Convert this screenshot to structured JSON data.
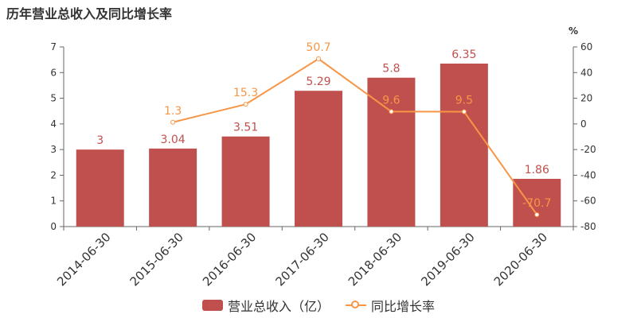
{
  "title": "历年营业总收入及同比增长率",
  "chart_data": {
    "type": "bar",
    "categories": [
      "2014-06-30",
      "2015-06-30",
      "2016-06-30",
      "2017-06-30",
      "2018-06-30",
      "2019-06-30",
      "2020-06-30"
    ],
    "series": [
      {
        "name": "营业总收入（亿）",
        "type": "bar",
        "axis": "left",
        "color": "#c0504d",
        "values": [
          3,
          3.04,
          3.51,
          5.29,
          5.8,
          6.35,
          1.86
        ],
        "labels": [
          "3",
          "3.04",
          "3.51",
          "5.29",
          "5.8",
          "6.35",
          "1.86"
        ]
      },
      {
        "name": "同比增长率",
        "type": "line",
        "axis": "right",
        "color": "#f79646",
        "values": [
          null,
          1.3,
          15.3,
          50.7,
          9.6,
          9.5,
          -70.7
        ],
        "labels": [
          "",
          "1.3",
          "15.3",
          "50.7",
          "9.6",
          "9.5",
          "-70.7"
        ]
      }
    ],
    "y_left": {
      "min": 0,
      "max": 7,
      "ticks": [
        "0",
        "1",
        "2",
        "3",
        "4",
        "5",
        "6",
        "7"
      ]
    },
    "y_right": {
      "min": -80,
      "max": 60,
      "unit": "%",
      "ticks": [
        "-80",
        "-60",
        "-40",
        "-20",
        "0",
        "20",
        "40",
        "60"
      ]
    },
    "grid": false,
    "legend_position": "bottom-center"
  }
}
